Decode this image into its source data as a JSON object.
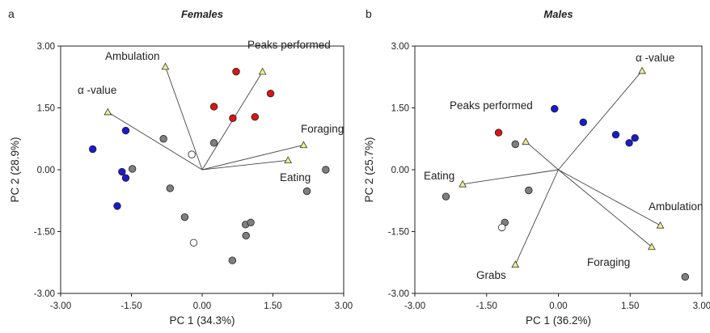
{
  "chart_data": [
    {
      "type": "scatter",
      "panel_label": "a",
      "title": "Females",
      "xlabel": "PC 1 (34.3%)",
      "ylabel": "PC 2 (28.9%)",
      "xlim": [
        -3.0,
        3.0
      ],
      "ylim": [
        -3.0,
        3.0
      ],
      "xticks": [
        "-3.00",
        "-1.50",
        "0.00",
        "1.50",
        "3.00"
      ],
      "yticks": [
        "-3.00",
        "-1.50",
        "0.00",
        "1.50",
        "3.00"
      ],
      "grid": false,
      "loadings": [
        {
          "label": "Ambulation",
          "x": -0.78,
          "y": 2.5
        },
        {
          "label": "Peaks performed",
          "x": 1.28,
          "y": 2.38
        },
        {
          "label": "α -value",
          "x": -2.0,
          "y": 1.4
        },
        {
          "label": "Foraging",
          "x": 2.15,
          "y": 0.6
        },
        {
          "label": "Eating",
          "x": 1.82,
          "y": 0.23
        }
      ],
      "series": [
        {
          "color": "#d91515",
          "points": [
            [
              0.72,
              2.38
            ],
            [
              1.45,
              1.85
            ],
            [
              0.25,
              1.53
            ],
            [
              0.65,
              1.25
            ],
            [
              1.12,
              1.28
            ]
          ]
        },
        {
          "color": "#1a1acc",
          "points": [
            [
              -1.62,
              0.95
            ],
            [
              -2.32,
              0.5
            ],
            [
              -1.7,
              -0.05
            ],
            [
              -1.62,
              -0.2
            ],
            [
              -1.8,
              -0.88
            ]
          ]
        },
        {
          "color": "#7f7f7f",
          "points": [
            [
              -0.82,
              0.75
            ],
            [
              0.25,
              0.65
            ],
            [
              -1.48,
              0.02
            ],
            [
              -0.68,
              -0.45
            ],
            [
              -0.37,
              -1.15
            ],
            [
              0.93,
              -1.6
            ],
            [
              0.92,
              -1.33
            ],
            [
              1.03,
              -1.28
            ],
            [
              0.64,
              -2.2
            ],
            [
              2.22,
              -0.52
            ],
            [
              2.62,
              0.0
            ]
          ]
        },
        {
          "color": "#ffffff",
          "points": [
            [
              -0.22,
              0.37
            ],
            [
              -0.18,
              -1.77
            ]
          ]
        }
      ]
    },
    {
      "type": "scatter",
      "panel_label": "b",
      "title": "Males",
      "xlabel": "PC 1 (36.2%)",
      "ylabel": "PC 2 (25.7%)",
      "xlim": [
        -3.0,
        3.0
      ],
      "ylim": [
        -3.0,
        3.0
      ],
      "xticks": [
        "-3.00",
        "-1.50",
        "0.00",
        "1.50",
        "3.00"
      ],
      "yticks": [
        "-3.00",
        "-1.50",
        "0.00",
        "1.50",
        "3.00"
      ],
      "grid": false,
      "loadings": [
        {
          "label": "α -value",
          "x": 1.75,
          "y": 2.4
        },
        {
          "label": "Peaks performed",
          "x": -0.68,
          "y": 0.68
        },
        {
          "label": "Eating",
          "x": -2.0,
          "y": -0.35
        },
        {
          "label": "Ambulation",
          "x": 2.13,
          "y": -1.35
        },
        {
          "label": "Foraging",
          "x": 1.95,
          "y": -1.87
        },
        {
          "label": "Grabs",
          "x": -0.9,
          "y": -2.3
        }
      ],
      "series": [
        {
          "color": "#d91515",
          "points": [
            [
              -1.25,
              0.9
            ]
          ]
        },
        {
          "color": "#1a1acc",
          "points": [
            [
              -0.08,
              1.48
            ],
            [
              0.52,
              1.15
            ],
            [
              1.2,
              0.85
            ],
            [
              1.48,
              0.65
            ],
            [
              1.6,
              0.77
            ]
          ]
        },
        {
          "color": "#7f7f7f",
          "points": [
            [
              -0.9,
              0.62
            ],
            [
              -0.62,
              -0.5
            ],
            [
              -2.35,
              -0.65
            ],
            [
              -1.12,
              -1.28
            ],
            [
              2.65,
              -2.6
            ]
          ]
        },
        {
          "color": "#ffffff",
          "points": [
            [
              -1.18,
              -1.4
            ]
          ]
        }
      ]
    }
  ]
}
